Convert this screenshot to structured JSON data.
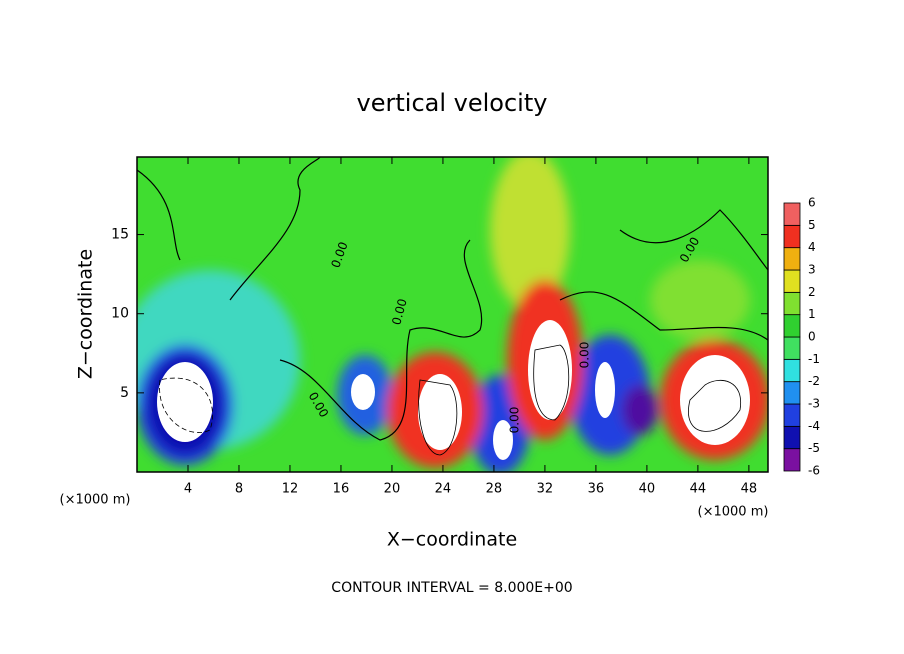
{
  "chart_data": {
    "type": "contour",
    "title": "vertical velocity",
    "x_label": "X−coordinate",
    "y_label": "Z−coordinate",
    "x_unit": "(×1000 m)",
    "x_unit_right": "(×1000 m)",
    "footer": "CONTOUR INTERVAL = 8.000E+00",
    "contour_labels": [
      "0.00",
      "0.00",
      "0.00",
      "0.00",
      "0.00",
      "0.00"
    ],
    "xlim": [
      0,
      49.5
    ],
    "xticks": [
      4,
      8,
      12,
      16,
      20,
      24,
      28,
      32,
      36,
      40,
      44,
      48
    ],
    "ylim": [
      0,
      19.9
    ],
    "yticks": [
      5,
      10,
      15
    ],
    "colorbar": {
      "ticks": [
        -6,
        -5,
        -4,
        -3,
        -2,
        -1,
        0,
        1,
        2,
        3,
        4,
        5,
        6
      ],
      "colors": [
        "#7a10a0",
        "#1010b0",
        "#2040e0",
        "#2090f0",
        "#30e0e0",
        "#40e060",
        "#30d030",
        "#80e030",
        "#e0e020",
        "#f0b010",
        "#f03020",
        "#f06060"
      ]
    }
  }
}
